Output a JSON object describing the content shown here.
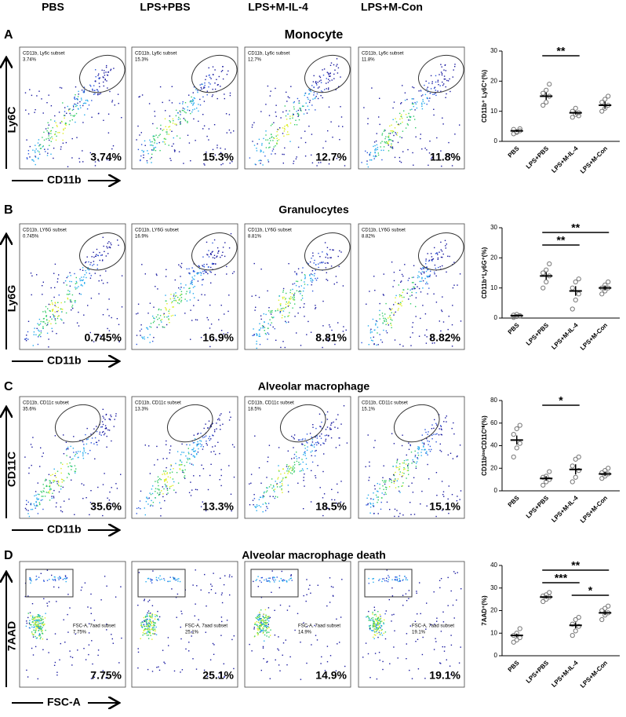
{
  "column_headers": [
    "PBS",
    "LPS+PBS",
    "LPS+M-IL-4",
    "LPS+M-Con"
  ],
  "panels": [
    {
      "letter": "A",
      "title": "Monocyte",
      "y_label": "Ly6C",
      "x_label": "CD11b",
      "plots": [
        {
          "gate_label": "CD11b, Ly6c subset",
          "gate_pct": "3.74%",
          "pct": "3.74%"
        },
        {
          "gate_label": "CD11b, Ly6c subset",
          "gate_pct": "15.3%",
          "pct": "15.3%"
        },
        {
          "gate_label": "CD11b, Ly6c subset",
          "gate_pct": "12.7%",
          "pct": "12.7%"
        },
        {
          "gate_label": "CD11b, Ly6c subset",
          "gate_pct": "11.8%",
          "pct": "11.8%"
        }
      ]
    },
    {
      "letter": "B",
      "title": "Granulocytes",
      "y_label": "Ly6G",
      "x_label": "CD11b",
      "plots": [
        {
          "gate_label": "CD11b, LY6G subset",
          "gate_pct": "0.745%",
          "pct": "0.745%"
        },
        {
          "gate_label": "CD11b, LY6G subset",
          "gate_pct": "16.9%",
          "pct": "16.9%"
        },
        {
          "gate_label": "CD11b, LY6G subset",
          "gate_pct": "8.81%",
          "pct": "8.81%"
        },
        {
          "gate_label": "CD11b, LY6G subset",
          "gate_pct": "8.82%",
          "pct": "8.82%"
        }
      ]
    },
    {
      "letter": "C",
      "title": "Alveolar macrophage",
      "y_label": "CD11C",
      "x_label": "CD11b",
      "plots": [
        {
          "gate_label": "CD11b, CD11c subset",
          "gate_pct": "35.6%",
          "pct": "35.6%"
        },
        {
          "gate_label": "CD11b, CD11c subset",
          "gate_pct": "13.3%",
          "pct": "13.3%"
        },
        {
          "gate_label": "CD11b, CD11c subset",
          "gate_pct": "18.5%",
          "pct": "18.5%"
        },
        {
          "gate_label": "CD11b, CD11c subset",
          "gate_pct": "15.1%",
          "pct": "15.1%"
        }
      ]
    },
    {
      "letter": "D",
      "title": "Alveolar macrophage death",
      "y_label": "7AAD",
      "x_label": "FSC-A",
      "plots": [
        {
          "gate_label": "FSC-A, 7aad subset",
          "gate_pct": "7.75%",
          "pct": "7.75%"
        },
        {
          "gate_label": "FSC-A, 7aad subset",
          "gate_pct": "25.1%",
          "pct": "25.1%"
        },
        {
          "gate_label": "FSC-A, 7aad subset",
          "gate_pct": "14.9%",
          "pct": "14.9%"
        },
        {
          "gate_label": "FSC-A, 7aad subset",
          "gate_pct": "19.1%",
          "pct": "19.1%"
        }
      ]
    }
  ],
  "chart_data": [
    {
      "type": "dot",
      "y_label": "CD11b⁺ Ly6C⁺(%)",
      "categories": [
        "PBS",
        "LPS+PBS",
        "LPS+M-IL-4",
        "LPS+M-Con"
      ],
      "values": [
        3.5,
        15,
        9.5,
        12
      ],
      "errors": [
        0.4,
        1.2,
        0.6,
        1.2
      ],
      "points": [
        [
          2.5,
          3,
          3.5,
          4,
          3.2,
          4.2
        ],
        [
          12,
          13,
          15,
          16,
          17,
          19
        ],
        [
          8,
          9,
          9.5,
          10,
          11,
          8.5
        ],
        [
          10,
          11,
          12,
          13,
          14,
          15
        ]
      ],
      "ylim": [
        0,
        30
      ],
      "yticks": [
        0,
        10,
        20,
        30
      ],
      "significance": [
        {
          "between": [
            "LPS+PBS",
            "LPS+M-IL-4"
          ],
          "label": "**"
        }
      ]
    },
    {
      "type": "dot",
      "y_label": "CD11b⁺Ly6G⁺(%)",
      "categories": [
        "PBS",
        "LPS+PBS",
        "LPS+M-IL-4",
        "LPS+M-Con"
      ],
      "values": [
        0.8,
        14,
        9,
        10
      ],
      "errors": [
        0.3,
        1.2,
        1.6,
        0.8
      ],
      "points": [
        [
          0.2,
          0.5,
          0.8,
          1,
          1.2,
          0.6
        ],
        [
          10,
          12,
          14,
          15,
          16,
          18
        ],
        [
          3,
          6,
          8,
          10,
          12,
          13
        ],
        [
          8,
          9,
          10,
          10,
          11,
          12
        ]
      ],
      "ylim": [
        0,
        30
      ],
      "yticks": [
        0,
        10,
        20,
        30
      ],
      "significance": [
        {
          "between": [
            "LPS+PBS",
            "LPS+M-Con"
          ],
          "label": "**"
        },
        {
          "between": [
            "LPS+PBS",
            "LPS+M-IL-4"
          ],
          "label": "**"
        }
      ]
    },
    {
      "type": "dot",
      "y_label": "CD11bˡᵒʷCD11Cᴴⁱ(%)",
      "categories": [
        "PBS",
        "LPS+PBS",
        "LPS+M-IL-4",
        "LPS+M-Con"
      ],
      "values": [
        45,
        11,
        19,
        15
      ],
      "errors": [
        4,
        2,
        4.5,
        2
      ],
      "points": [
        [
          30,
          38,
          42,
          50,
          55,
          58
        ],
        [
          5,
          8,
          10,
          12,
          13,
          17
        ],
        [
          8,
          12,
          18,
          22,
          28,
          30
        ],
        [
          11,
          13,
          15,
          16,
          18,
          20
        ]
      ],
      "ylim": [
        0,
        80
      ],
      "yticks": [
        0,
        20,
        40,
        60,
        80
      ],
      "significance": [
        {
          "between": [
            "LPS+PBS",
            "LPS+M-IL-4"
          ],
          "label": "*"
        }
      ]
    },
    {
      "type": "dot",
      "y_label": "7AAD⁺(%)",
      "categories": [
        "PBS",
        "LPS+PBS",
        "LPS+M-IL-4",
        "LPS+M-Con"
      ],
      "values": [
        9,
        26,
        13.5,
        19
      ],
      "errors": [
        0.8,
        0.7,
        1.3,
        1
      ],
      "points": [
        [
          6,
          7,
          8,
          9,
          10,
          12
        ],
        [
          24,
          25,
          26,
          26.5,
          27,
          28
        ],
        [
          9,
          11,
          13,
          14,
          16,
          17
        ],
        [
          16,
          18,
          19,
          20,
          21,
          22
        ]
      ],
      "ylim": [
        0,
        40
      ],
      "yticks": [
        0,
        10,
        20,
        30,
        40
      ],
      "significance": [
        {
          "between": [
            "LPS+PBS",
            "LPS+M-Con"
          ],
          "label": "**"
        },
        {
          "between": [
            "LPS+PBS",
            "LPS+M-IL-4"
          ],
          "label": "***"
        },
        {
          "between": [
            "LPS+M-IL-4",
            "LPS+M-Con"
          ],
          "label": "*"
        }
      ]
    }
  ]
}
